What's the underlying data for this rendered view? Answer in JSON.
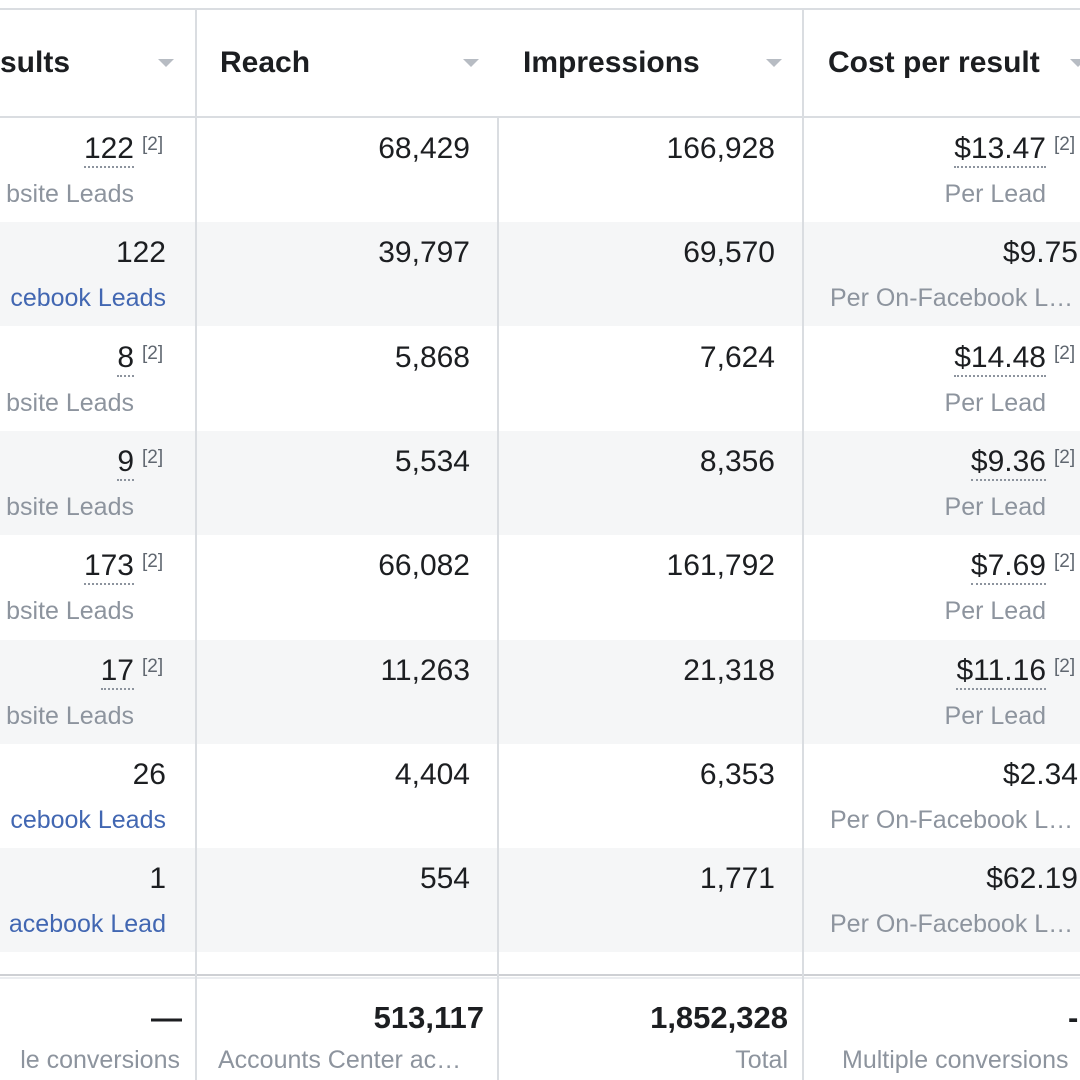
{
  "table": {
    "columns": [
      {
        "label": "sults"
      },
      {
        "label": "Reach"
      },
      {
        "label": "Impressions"
      },
      {
        "label": "Cost per result"
      }
    ],
    "rows": [
      {
        "results": "122",
        "results_note": "[2]",
        "results_sub": "bsite Leads",
        "reach": "68,429",
        "impressions": "166,928",
        "cost": "$13.47",
        "cost_note": "[2]",
        "cost_sub": "Per Lead"
      },
      {
        "results": "122",
        "results_note": "",
        "results_sub": "cebook Leads",
        "reach": "39,797",
        "impressions": "69,570",
        "cost": "$9.75",
        "cost_note": "",
        "cost_sub": "Per On-Facebook L…"
      },
      {
        "results": "8",
        "results_note": "[2]",
        "results_sub": "bsite Leads",
        "reach": "5,868",
        "impressions": "7,624",
        "cost": "$14.48",
        "cost_note": "[2]",
        "cost_sub": "Per Lead"
      },
      {
        "results": "9",
        "results_note": "[2]",
        "results_sub": "bsite Leads",
        "reach": "5,534",
        "impressions": "8,356",
        "cost": "$9.36",
        "cost_note": "[2]",
        "cost_sub": "Per Lead"
      },
      {
        "results": "173",
        "results_note": "[2]",
        "results_sub": "bsite Leads",
        "reach": "66,082",
        "impressions": "161,792",
        "cost": "$7.69",
        "cost_note": "[2]",
        "cost_sub": "Per Lead"
      },
      {
        "results": "17",
        "results_note": "[2]",
        "results_sub": "bsite Leads",
        "reach": "11,263",
        "impressions": "21,318",
        "cost": "$11.16",
        "cost_note": "[2]",
        "cost_sub": "Per Lead"
      },
      {
        "results": "26",
        "results_note": "",
        "results_sub": "cebook Leads",
        "reach": "4,404",
        "impressions": "6,353",
        "cost": "$2.34",
        "cost_note": "",
        "cost_sub": "Per On-Facebook L…"
      },
      {
        "results": "1",
        "results_note": "",
        "results_sub": "acebook Lead",
        "reach": "554",
        "impressions": "1,771",
        "cost": "$62.19",
        "cost_note": "",
        "cost_sub": "Per On-Facebook L…"
      }
    ],
    "footer": {
      "results": "—",
      "results_sub": "le conversions",
      "reach": "513,117",
      "reach_sub": "Accounts Center ac…",
      "impressions": "1,852,328",
      "impressions_sub": "Total",
      "cost": "-",
      "cost_sub": "Multiple conversions"
    }
  },
  "colors": {
    "link": "#4267b2",
    "muted": "#8d949e",
    "border": "#dadde1",
    "row_alt": "#f5f6f7"
  },
  "icons": {
    "sort": "chevron-down-icon"
  }
}
